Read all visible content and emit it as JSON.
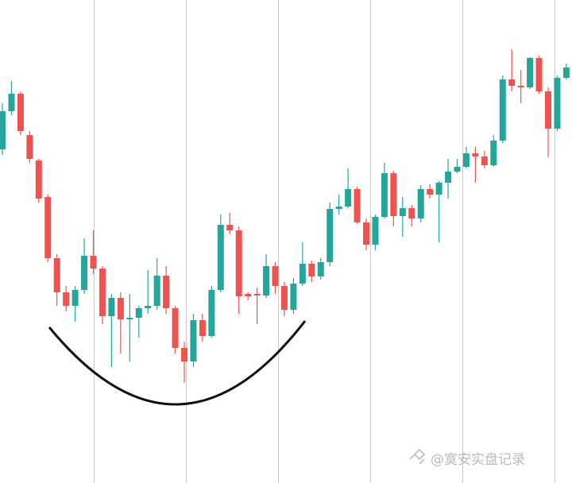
{
  "chart_data": {
    "type": "candlestick",
    "watermark": "@寞安实盘记录",
    "up_color": "#26a69a",
    "down_color": "#ef5350",
    "ylim": [
      0,
      608
    ],
    "open": [
      420,
      468,
      490,
      438,
      406,
      360,
      283,
      240,
      223,
      243,
      286,
      270,
      210,
      233,
      206,
      208,
      220,
      223,
      261,
      220,
      170,
      153,
      205,
      185,
      243,
      325,
      318,
      238,
      238,
      236,
      273,
      248,
      218,
      251,
      276,
      260,
      278,
      345,
      348,
      370,
      328,
      300,
      335,
      390,
      336,
      346,
      333,
      370,
      363,
      378,
      392,
      398,
      415,
      411,
      400,
      431,
      508,
      500,
      498,
      535,
      493,
      446,
      510
    ],
    "high": [
      478,
      506,
      493,
      443,
      408,
      363,
      288,
      248,
      248,
      308,
      318,
      273,
      238,
      240,
      238,
      223,
      268,
      283,
      273,
      223,
      178,
      213,
      213,
      248,
      338,
      340,
      323,
      240,
      246,
      288,
      278,
      253,
      258,
      303,
      280,
      283,
      353,
      363,
      396,
      373,
      333,
      338,
      403,
      393,
      360,
      350,
      375,
      376,
      380,
      408,
      408,
      423,
      423,
      418,
      438,
      513,
      546,
      520,
      536,
      538,
      498,
      513,
      528
    ],
    "low": [
      413,
      463,
      438,
      403,
      353,
      278,
      223,
      216,
      203,
      238,
      263,
      200,
      146,
      163,
      153,
      183,
      213,
      218,
      213,
      163,
      126,
      146,
      178,
      183,
      240,
      313,
      213,
      230,
      200,
      233,
      238,
      210,
      213,
      248,
      253,
      256,
      273,
      338,
      346,
      326,
      293,
      293,
      333,
      323,
      310,
      323,
      328,
      358,
      303,
      358,
      390,
      396,
      378,
      396,
      398,
      428,
      493,
      478,
      496,
      490,
      410,
      443,
      508
    ],
    "close": [
      468,
      490,
      443,
      408,
      358,
      283,
      240,
      223,
      243,
      286,
      270,
      210,
      233,
      206,
      208,
      220,
      223,
      261,
      220,
      170,
      153,
      205,
      185,
      243,
      325,
      318,
      235,
      235,
      236,
      273,
      248,
      218,
      251,
      276,
      260,
      278,
      345,
      348,
      370,
      328,
      300,
      335,
      390,
      336,
      346,
      333,
      370,
      363,
      378,
      392,
      398,
      415,
      411,
      400,
      431,
      508,
      500,
      498,
      535,
      493,
      446,
      510,
      523
    ]
  }
}
